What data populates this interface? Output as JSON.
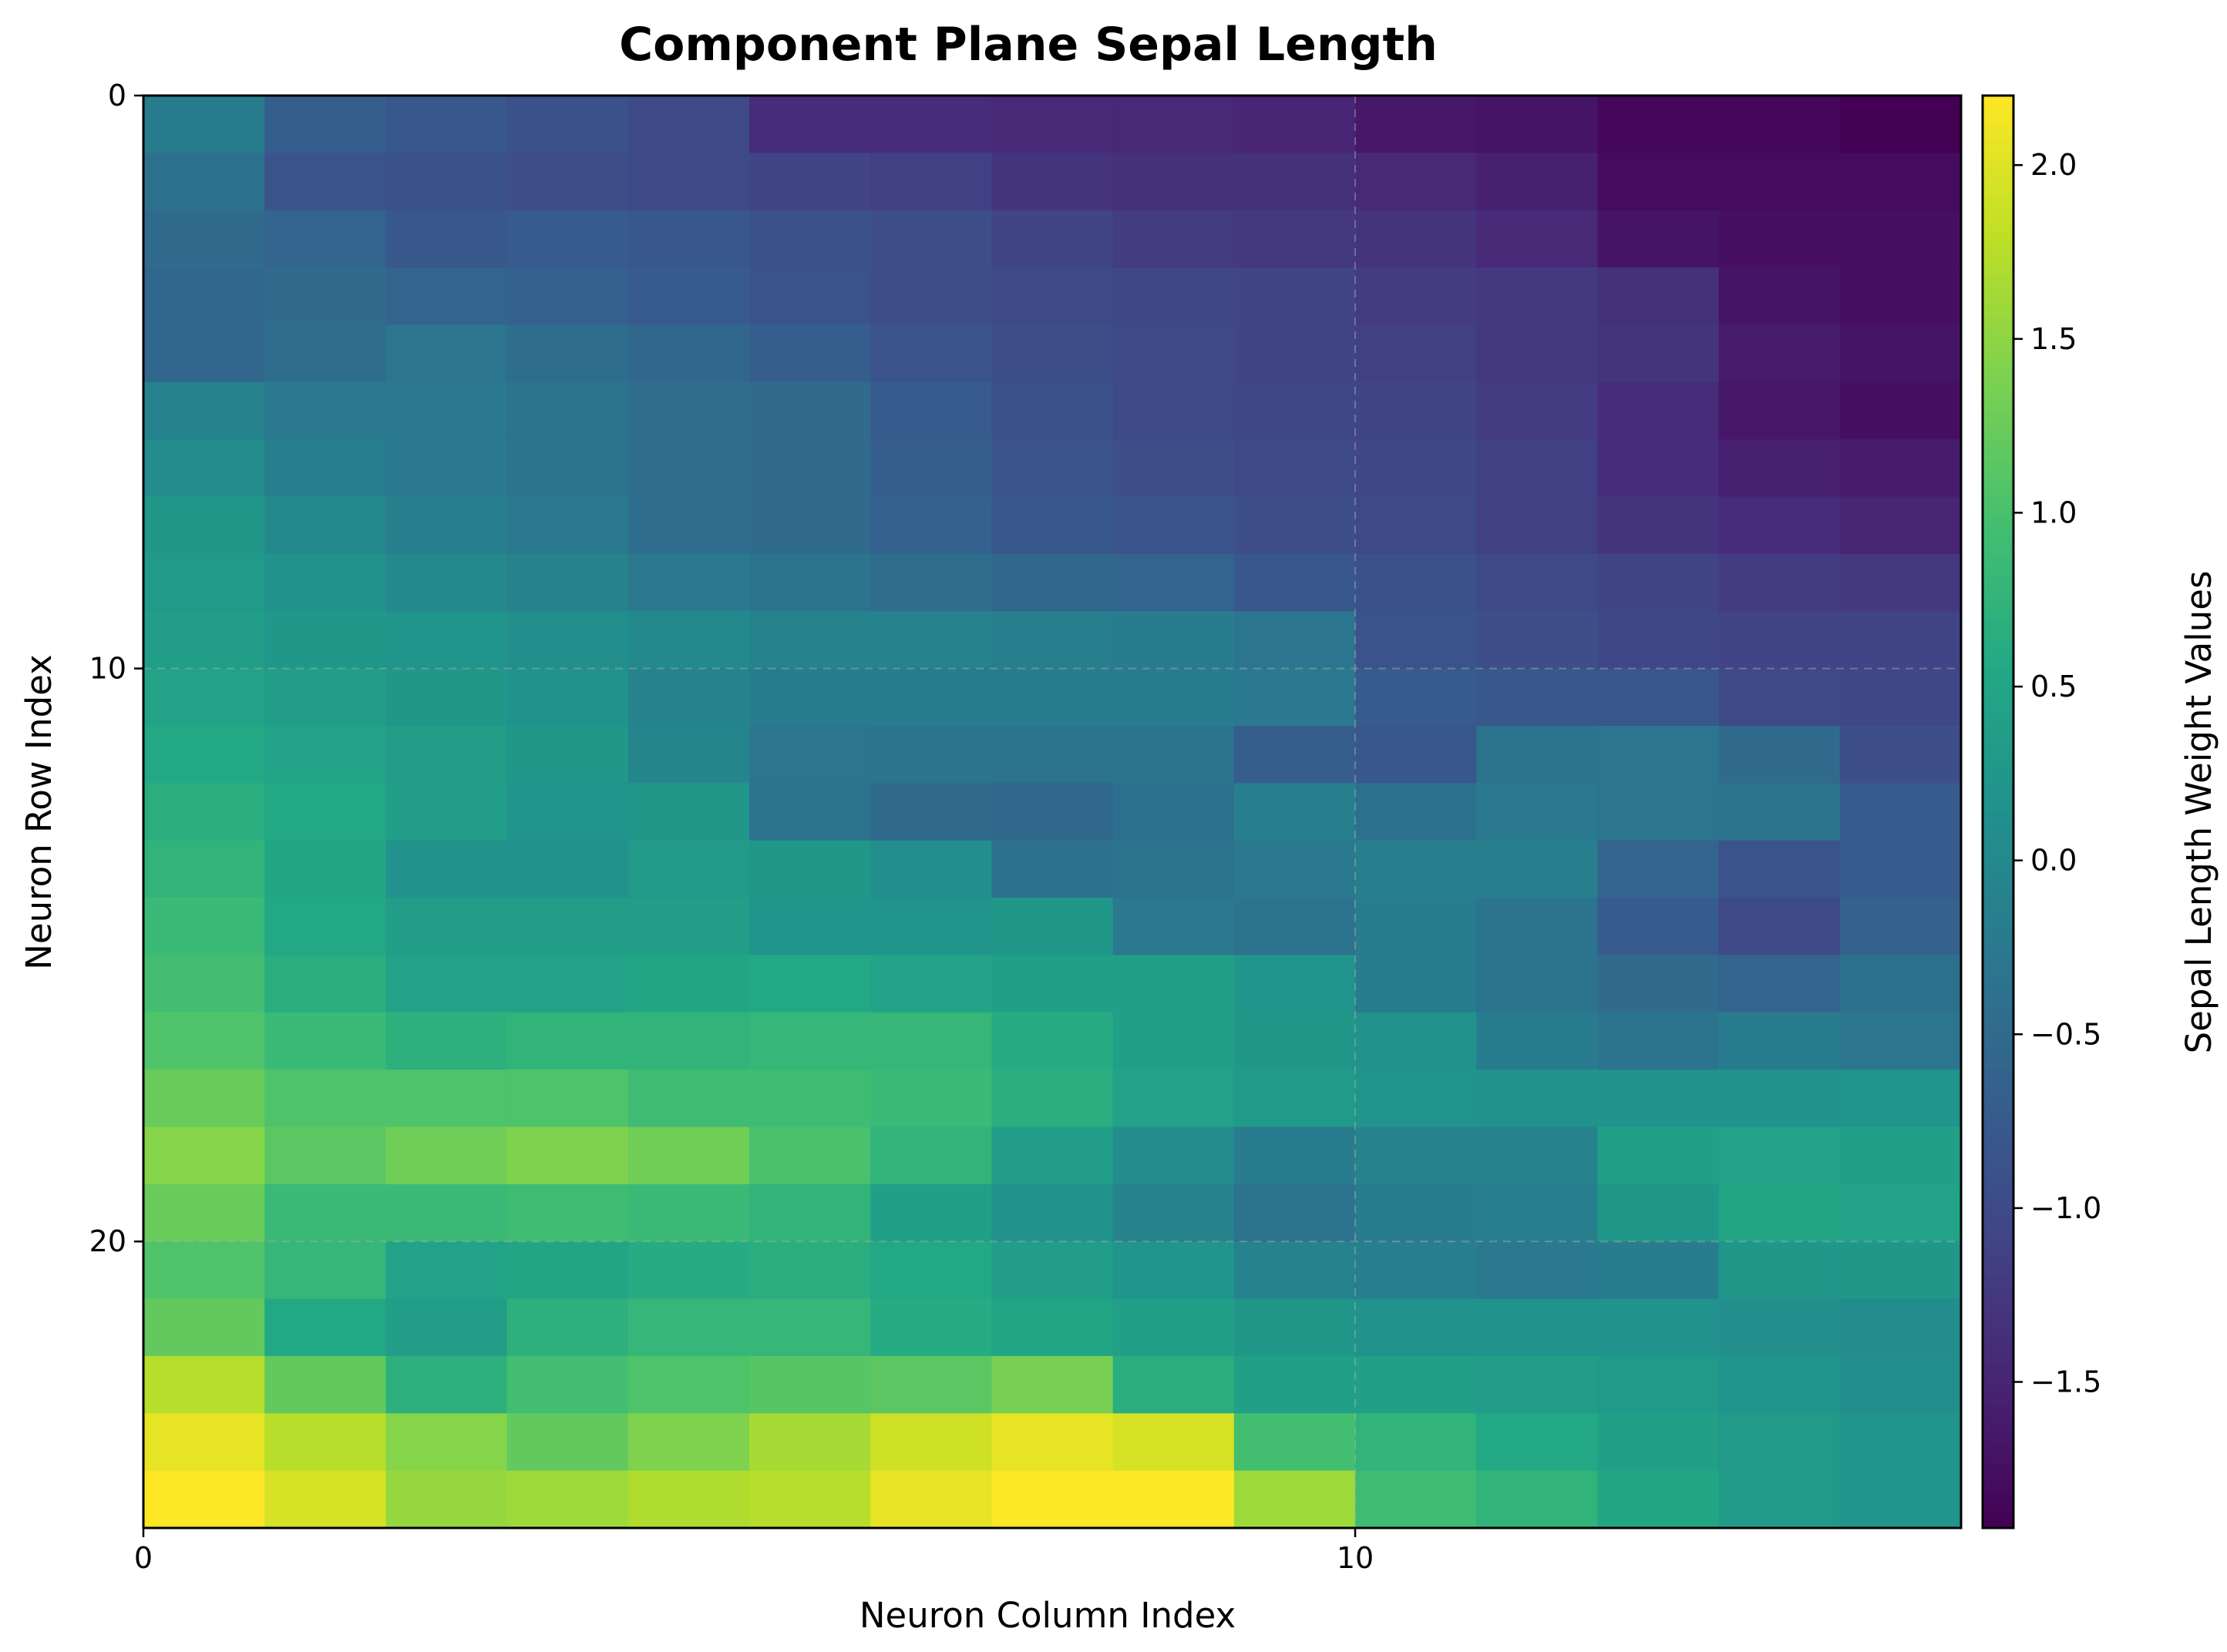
{
  "chart_data": {
    "type": "heatmap",
    "title": "Component Plane Sepal Length",
    "xlabel": "Neuron Column Index",
    "ylabel": "Neuron Row Index",
    "colorbar_label": "Sepal Length Weight Values",
    "colormap": "viridis",
    "vmin": -1.92,
    "vmax": 2.2,
    "n_rows": 25,
    "n_cols": 15,
    "x_ticks": [
      0,
      10
    ],
    "y_ticks": [
      0,
      10,
      20
    ],
    "colorbar_ticks": [
      2.0,
      1.5,
      1.0,
      0.5,
      0.0,
      -0.5,
      -1.0,
      -1.5
    ],
    "colorbar_tick_labels": [
      "2.0",
      "1.5",
      "1.0",
      "0.5",
      "0.0",
      "−0.5",
      "−1.0",
      "−1.5"
    ],
    "grid": true,
    "values": [
      [
        -0.2,
        -0.7,
        -0.8,
        -0.9,
        -1.0,
        -1.4,
        -1.4,
        -1.45,
        -1.45,
        -1.5,
        -1.65,
        -1.7,
        -1.85,
        -1.85,
        -1.92
      ],
      [
        -0.4,
        -0.85,
        -0.9,
        -0.95,
        -1.0,
        -1.1,
        -1.15,
        -1.3,
        -1.35,
        -1.35,
        -1.45,
        -1.55,
        -1.8,
        -1.8,
        -1.8
      ],
      [
        -0.5,
        -0.6,
        -0.8,
        -0.75,
        -0.8,
        -0.9,
        -0.95,
        -1.1,
        -1.2,
        -1.25,
        -1.3,
        -1.45,
        -1.7,
        -1.75,
        -1.75
      ],
      [
        -0.55,
        -0.5,
        -0.6,
        -0.65,
        -0.75,
        -0.85,
        -0.95,
        -1.0,
        -1.05,
        -1.1,
        -1.2,
        -1.25,
        -1.35,
        -1.7,
        -1.75
      ],
      [
        -0.55,
        -0.45,
        -0.3,
        -0.45,
        -0.55,
        -0.7,
        -0.85,
        -0.95,
        -1.0,
        -1.1,
        -1.15,
        -1.25,
        -1.3,
        -1.6,
        -1.7
      ],
      [
        -0.1,
        -0.25,
        -0.25,
        -0.35,
        -0.45,
        -0.5,
        -0.75,
        -0.9,
        -1.0,
        -1.05,
        -1.1,
        -1.2,
        -1.4,
        -1.65,
        -1.75
      ],
      [
        0.05,
        -0.15,
        -0.25,
        -0.35,
        -0.45,
        -0.5,
        -0.7,
        -0.85,
        -0.95,
        -1.0,
        -1.05,
        -1.15,
        -1.4,
        -1.55,
        -1.6
      ],
      [
        0.25,
        0.0,
        -0.15,
        -0.25,
        -0.45,
        -0.5,
        -0.65,
        -0.8,
        -0.85,
        -0.95,
        -1.0,
        -1.15,
        -1.3,
        -1.4,
        -1.5
      ],
      [
        0.3,
        0.15,
        0.0,
        -0.1,
        -0.25,
        -0.35,
        -0.45,
        -0.55,
        -0.6,
        -0.8,
        -0.9,
        -1.0,
        -1.1,
        -1.2,
        -1.25
      ],
      [
        0.35,
        0.25,
        0.2,
        0.1,
        0.0,
        -0.1,
        -0.1,
        -0.15,
        -0.2,
        -0.3,
        -0.85,
        -0.95,
        -1.05,
        -1.1,
        -1.1
      ],
      [
        0.45,
        0.35,
        0.25,
        0.15,
        -0.1,
        -0.2,
        -0.2,
        -0.2,
        -0.2,
        -0.25,
        -0.75,
        -0.8,
        -0.8,
        -1.0,
        -1.05
      ],
      [
        0.55,
        0.45,
        0.35,
        0.25,
        -0.05,
        -0.3,
        -0.35,
        -0.35,
        -0.35,
        -0.7,
        -0.8,
        -0.35,
        -0.3,
        -0.5,
        -0.95
      ],
      [
        0.65,
        0.55,
        0.35,
        0.2,
        0.25,
        -0.35,
        -0.5,
        -0.55,
        -0.4,
        -0.15,
        -0.4,
        -0.25,
        -0.3,
        -0.35,
        -0.75
      ],
      [
        0.75,
        0.5,
        0.15,
        0.15,
        0.3,
        0.25,
        0.1,
        -0.4,
        -0.35,
        -0.25,
        -0.15,
        -0.15,
        -0.6,
        -0.85,
        -0.75
      ],
      [
        0.85,
        0.55,
        0.35,
        0.35,
        0.35,
        0.2,
        0.2,
        0.25,
        -0.25,
        -0.35,
        -0.2,
        -0.35,
        -0.75,
        -1.0,
        -0.65
      ],
      [
        0.95,
        0.65,
        0.45,
        0.45,
        0.5,
        0.55,
        0.45,
        0.4,
        0.4,
        0.2,
        -0.2,
        -0.35,
        -0.5,
        -0.6,
        -0.4
      ],
      [
        1.05,
        0.85,
        0.7,
        0.75,
        0.75,
        0.8,
        0.8,
        0.6,
        0.4,
        0.25,
        0.15,
        -0.2,
        -0.35,
        -0.2,
        -0.3
      ],
      [
        1.25,
        1.05,
        1.05,
        1.05,
        0.9,
        0.9,
        0.85,
        0.65,
        0.45,
        0.3,
        0.2,
        0.15,
        0.15,
        0.15,
        0.2
      ],
      [
        1.45,
        1.15,
        1.3,
        1.4,
        1.3,
        1.0,
        0.75,
        0.35,
        0.05,
        -0.2,
        -0.1,
        -0.1,
        0.4,
        0.45,
        0.4
      ],
      [
        1.25,
        0.85,
        0.85,
        0.9,
        0.85,
        0.75,
        0.4,
        0.15,
        -0.1,
        -0.35,
        -0.2,
        -0.15,
        0.25,
        0.5,
        0.45
      ],
      [
        1.05,
        0.8,
        0.45,
        0.5,
        0.6,
        0.65,
        0.55,
        0.35,
        0.2,
        -0.1,
        -0.15,
        -0.25,
        -0.2,
        0.25,
        0.25
      ],
      [
        1.2,
        0.55,
        0.35,
        0.7,
        0.8,
        0.8,
        0.6,
        0.5,
        0.4,
        0.25,
        0.15,
        0.15,
        0.15,
        0.1,
        0.05
      ],
      [
        1.75,
        1.2,
        0.7,
        0.95,
        1.05,
        1.1,
        1.15,
        1.35,
        0.65,
        0.4,
        0.4,
        0.35,
        0.3,
        0.2,
        0.1
      ],
      [
        2.05,
        1.75,
        1.45,
        1.2,
        1.4,
        1.65,
        1.9,
        2.05,
        1.95,
        0.95,
        0.75,
        0.55,
        0.4,
        0.3,
        0.2
      ],
      [
        2.2,
        1.95,
        1.55,
        1.6,
        1.7,
        1.75,
        2.05,
        2.2,
        2.2,
        1.6,
        0.9,
        0.75,
        0.5,
        0.3,
        0.2
      ]
    ]
  }
}
